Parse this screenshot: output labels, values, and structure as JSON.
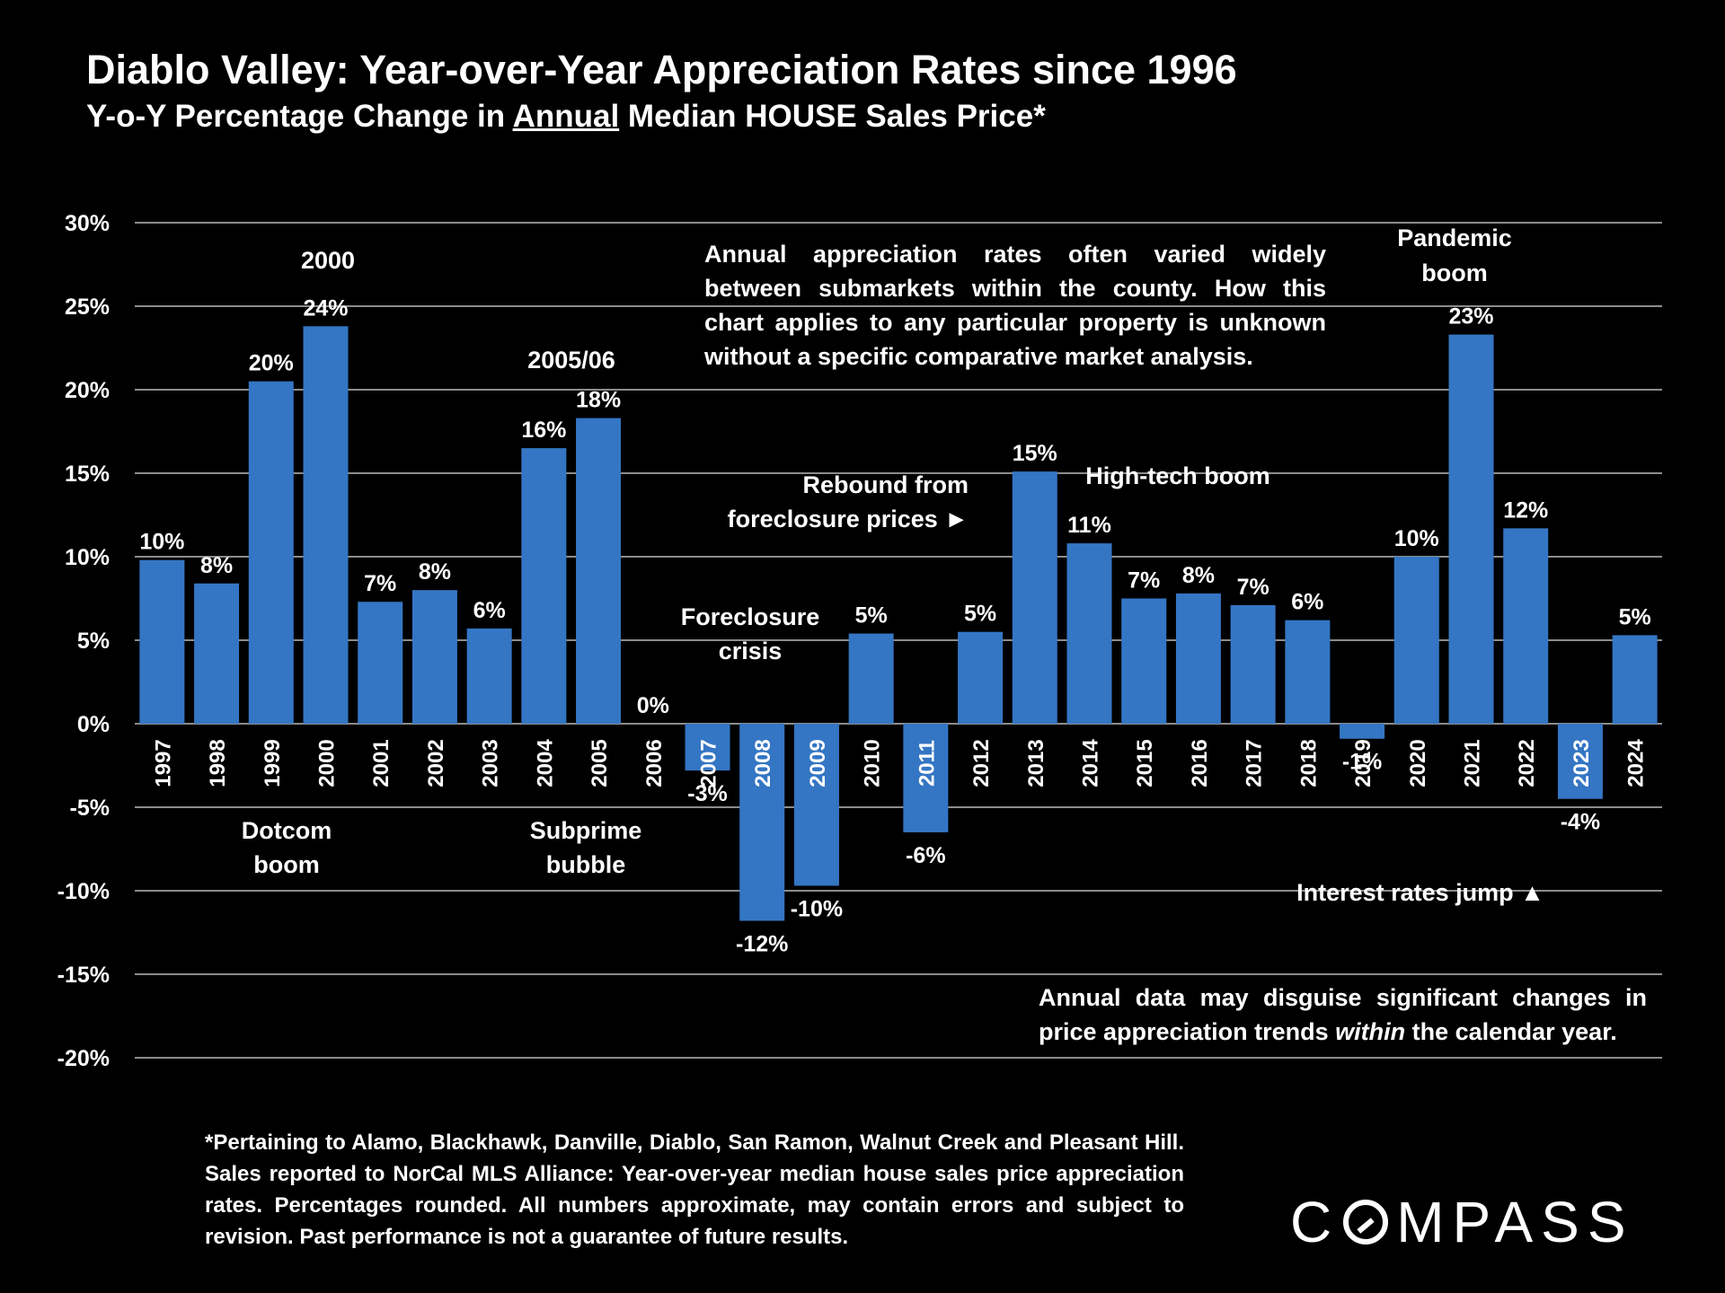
{
  "colors": {
    "background": "#000000",
    "bar": "#3476c4",
    "grid": "#8c8c8c",
    "text": "#ffffff"
  },
  "chart_data": {
    "type": "bar",
    "title": "Diablo Valley: Year-over-Year Appreciation Rates since 1996",
    "subtitle": {
      "before": "Y-o-Y Percentage Change in ",
      "underlined": "Annual",
      "after": " Median HOUSE Sales Price*"
    },
    "categories": [
      "1997",
      "1998",
      "1999",
      "2000",
      "2001",
      "2002",
      "2003",
      "2004",
      "2005",
      "2006",
      "2007",
      "2008",
      "2009",
      "2010",
      "2011",
      "2012",
      "2013",
      "2014",
      "2015",
      "2016",
      "2017",
      "2018",
      "2019",
      "2020",
      "2021",
      "2022",
      "2023",
      "2024"
    ],
    "values": [
      9.8,
      8.4,
      20.5,
      23.8,
      7.3,
      8.0,
      5.7,
      16.5,
      18.3,
      0.0,
      -2.8,
      -11.8,
      -9.7,
      5.4,
      -6.5,
      5.5,
      15.1,
      10.8,
      7.5,
      7.8,
      7.1,
      6.2,
      -0.9,
      10.0,
      23.3,
      11.7,
      -4.5,
      5.3
    ],
    "data_labels": [
      "10%",
      "8%",
      "20%",
      "24%",
      "7%",
      "8%",
      "6%",
      "16%",
      "18%",
      "0%",
      "-3%",
      "-12%",
      "-10%",
      "5%",
      "-6%",
      "5%",
      "15%",
      "11%",
      "7%",
      "8%",
      "7%",
      "6%",
      "-1%",
      "10%",
      "23%",
      "12%",
      "-4%",
      "5%"
    ],
    "ylim": [
      -20,
      30
    ],
    "yticks": [
      30,
      25,
      20,
      15,
      10,
      5,
      0,
      -5,
      -10,
      -15,
      -20
    ],
    "ytick_labels": [
      "30%",
      "25%",
      "20%",
      "15%",
      "10%",
      "5%",
      "0%",
      "-5%",
      "-10%",
      "-15%",
      "-20%"
    ],
    "grid": true,
    "annotations": [
      {
        "id": "pandemic",
        "lines": [
          "Pandemic",
          "boom"
        ]
      },
      {
        "id": "y2000",
        "lines": [
          "2000"
        ]
      },
      {
        "id": "y2005",
        "lines": [
          "2005/06"
        ]
      },
      {
        "id": "rebound",
        "lines": [
          "Rebound from",
          "foreclosure prices ►"
        ]
      },
      {
        "id": "hightech",
        "lines": [
          "High-tech boom"
        ]
      },
      {
        "id": "foreclosure",
        "lines": [
          "Foreclosure",
          "crisis"
        ]
      },
      {
        "id": "dotcom",
        "lines": [
          "Dotcom",
          "boom"
        ]
      },
      {
        "id": "subprime",
        "lines": [
          "Subprime",
          "bubble"
        ]
      },
      {
        "id": "rates",
        "lines": [
          "Interest rates jump ▲"
        ]
      }
    ]
  },
  "notes": {
    "top": "Annual appreciation rates often varied widely between submarkets within the county. How this chart applies to any particular property is unknown without a specific comparative market analysis.",
    "bottom_before": "Annual data may disguise significant changes in price appreciation trends ",
    "bottom_italic": "within",
    "bottom_after": " the calendar year."
  },
  "footnote": "*Pertaining to Alamo, Blackhawk, Danville, Diablo, San Ramon, Walnut Creek and Pleasant Hill. Sales reported to NorCal MLS Alliance: Year-over-year median house sales price appreciation rates. Percentages rounded. All numbers approximate, may contain errors and subject to revision. Past performance is not a guarantee of future results.",
  "logo": {
    "before": "C",
    "after": "MPASS",
    "alt": "COMPASS"
  }
}
